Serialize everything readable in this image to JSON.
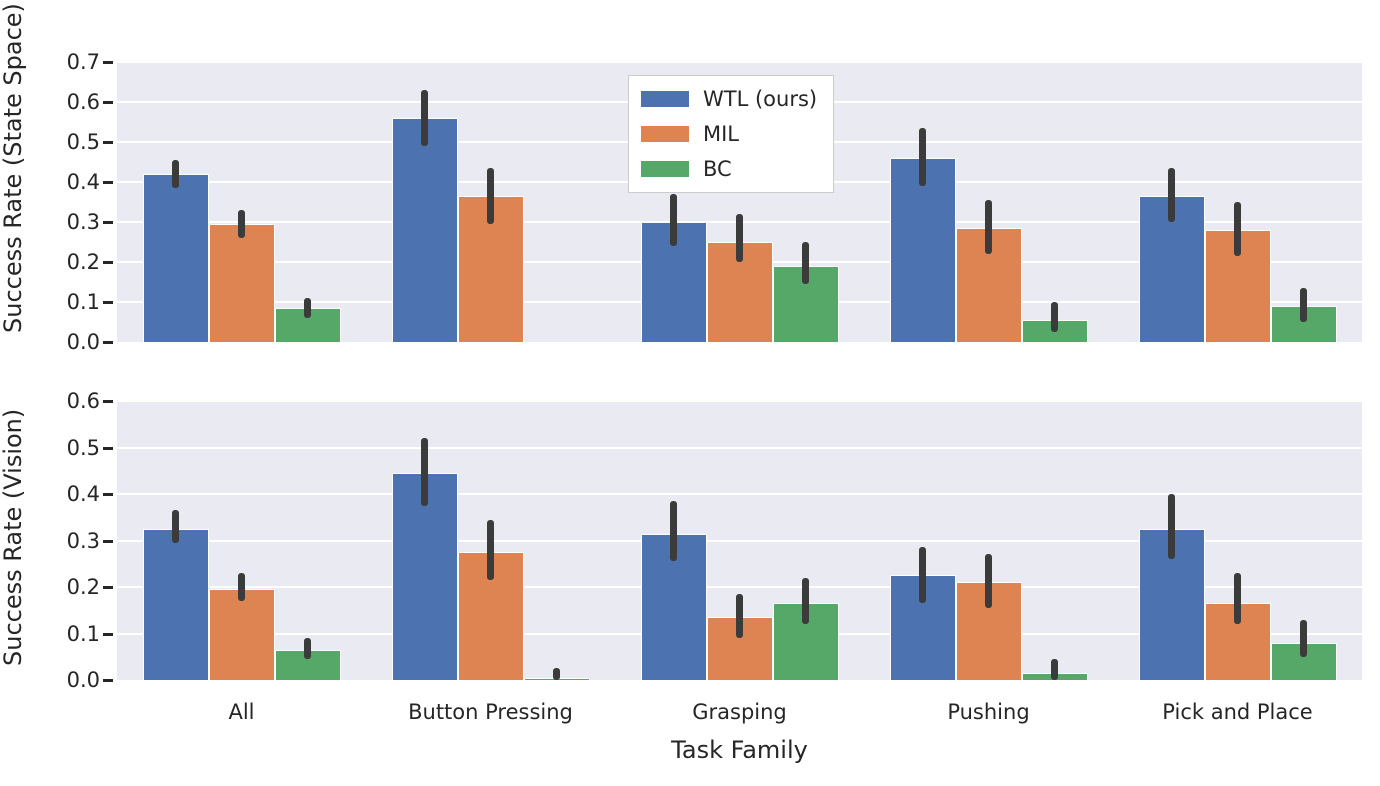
{
  "figure": {
    "background": "#ffffff",
    "panel_background": "#eaeaf2",
    "grid_color": "#ffffff",
    "text_color": "#262626",
    "errorbar_color": "#3b3b3b"
  },
  "legend": {
    "position": "upper center",
    "entries": [
      "WTL (ours)",
      "MIL",
      "BC"
    ]
  },
  "chart_data": [
    {
      "type": "bar",
      "panel": "top",
      "ylabel": "Success Rate (State Space)",
      "xlabel": "",
      "ylim": [
        0.0,
        0.7
      ],
      "yticks": [
        0.0,
        0.1,
        0.2,
        0.3,
        0.4,
        0.5,
        0.6,
        0.7
      ],
      "grid": true,
      "categories": [
        "All",
        "Button Pressing",
        "Grasping",
        "Pushing",
        "Pick and Place"
      ],
      "series": [
        {
          "name": "WTL (ours)",
          "color": "#4c72b0",
          "values": [
            0.42,
            0.56,
            0.3,
            0.46,
            0.365
          ],
          "err_low": [
            0.385,
            0.49,
            0.24,
            0.39,
            0.3
          ],
          "err_high": [
            0.455,
            0.63,
            0.37,
            0.535,
            0.435
          ]
        },
        {
          "name": "MIL",
          "color": "#dd8452",
          "values": [
            0.295,
            0.365,
            0.25,
            0.285,
            0.28
          ],
          "err_low": [
            0.26,
            0.295,
            0.2,
            0.22,
            0.215
          ],
          "err_high": [
            0.33,
            0.435,
            0.32,
            0.355,
            0.35
          ]
        },
        {
          "name": "BC",
          "color": "#55a868",
          "values": [
            0.085,
            0.0,
            0.19,
            0.055,
            0.09
          ],
          "err_low": [
            0.06,
            0.0,
            0.145,
            0.025,
            0.05
          ],
          "err_high": [
            0.11,
            0.0,
            0.25,
            0.1,
            0.135
          ]
        }
      ]
    },
    {
      "type": "bar",
      "panel": "bottom",
      "ylabel": "Success Rate (Vision)",
      "xlabel": "Task Family",
      "ylim": [
        0.0,
        0.6
      ],
      "yticks": [
        0.0,
        0.1,
        0.2,
        0.3,
        0.4,
        0.5,
        0.6
      ],
      "grid": true,
      "categories": [
        "All",
        "Button Pressing",
        "Grasping",
        "Pushing",
        "Pick and Place"
      ],
      "series": [
        {
          "name": "WTL (ours)",
          "color": "#4c72b0",
          "values": [
            0.325,
            0.445,
            0.315,
            0.225,
            0.325
          ],
          "err_low": [
            0.295,
            0.375,
            0.255,
            0.165,
            0.26
          ],
          "err_high": [
            0.365,
            0.52,
            0.385,
            0.285,
            0.4
          ]
        },
        {
          "name": "MIL",
          "color": "#dd8452",
          "values": [
            0.195,
            0.275,
            0.135,
            0.21,
            0.165
          ],
          "err_low": [
            0.17,
            0.215,
            0.09,
            0.155,
            0.12
          ],
          "err_high": [
            0.23,
            0.345,
            0.185,
            0.27,
            0.23
          ]
        },
        {
          "name": "BC",
          "color": "#55a868",
          "values": [
            0.065,
            0.005,
            0.165,
            0.015,
            0.08
          ],
          "err_low": [
            0.045,
            0.0,
            0.12,
            0.0,
            0.05
          ],
          "err_high": [
            0.09,
            0.025,
            0.22,
            0.045,
            0.13
          ]
        }
      ]
    }
  ]
}
